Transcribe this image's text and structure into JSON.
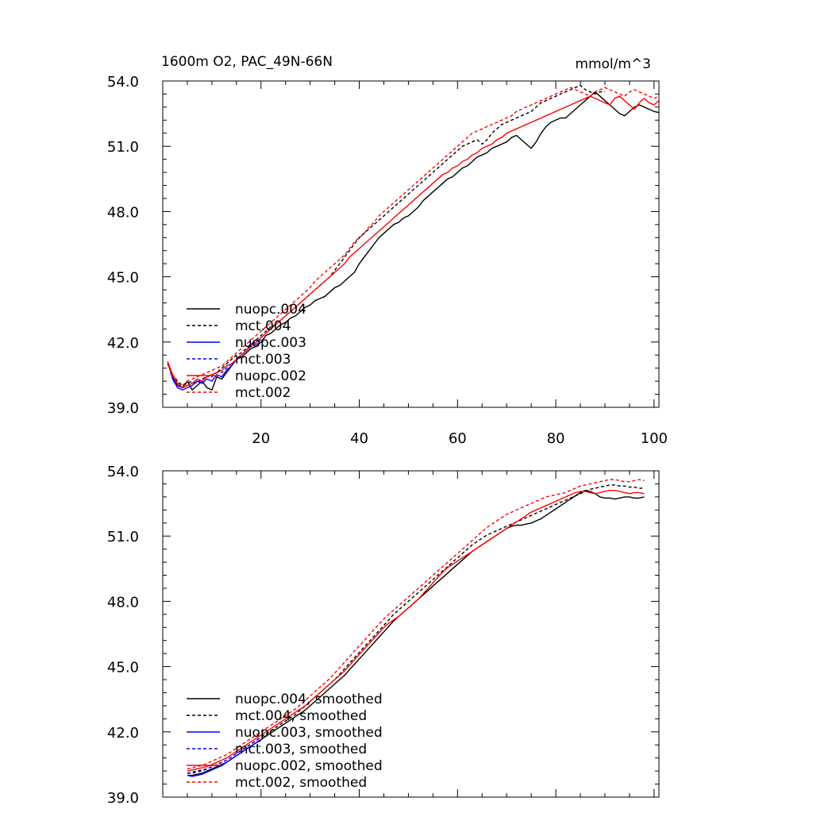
{
  "title": "1600m O2, PAC_49N-66N",
  "units": "mmol/m^3",
  "colors": {
    "nuopc_004": "#000000",
    "mct_004": "#000000",
    "nuopc_003": "#0000ff",
    "mct_003": "#0000ff",
    "nuopc_002": "#ff0000",
    "mct_002": "#ff0000"
  },
  "chart_data": [
    {
      "type": "line",
      "panel": "top",
      "xlim": [
        0,
        101
      ],
      "ylim": [
        39.0,
        54.0
      ],
      "x_ticks": [
        20,
        40,
        60,
        80,
        100
      ],
      "x_tick_labels": [
        "20",
        "40",
        "60",
        "80",
        "100"
      ],
      "y_ticks": [
        39.0,
        42.0,
        45.0,
        48.0,
        51.0,
        54.0
      ],
      "y_tick_labels": [
        "39.0",
        "42.0",
        "45.0",
        "48.0",
        "51.0",
        "54.0"
      ],
      "legend_placement": "lower-left",
      "series": [
        {
          "name": "nuopc.004",
          "style": "solid",
          "color": "#000000",
          "x_start": 1,
          "values": [
            41.1,
            40.4,
            40.0,
            39.9,
            40.2,
            39.8,
            40.0,
            40.2,
            39.9,
            39.8,
            40.4,
            40.3,
            40.6,
            40.9,
            41.2,
            41.3,
            41.5,
            41.7,
            41.8,
            42.0,
            42.3,
            42.4,
            42.6,
            42.8,
            42.9,
            43.1,
            43.2,
            43.4,
            43.6,
            43.7,
            43.9,
            44.0,
            44.1,
            44.3,
            44.5,
            44.6,
            44.8,
            45.0,
            45.2,
            45.6,
            45.9,
            46.2,
            46.5,
            46.8,
            47.0,
            47.2,
            47.4,
            47.5,
            47.7,
            47.8,
            48.0,
            48.2,
            48.5,
            48.7,
            48.9,
            49.1,
            49.3,
            49.5,
            49.6,
            49.8,
            50.0,
            50.1,
            50.3,
            50.5,
            50.6,
            50.7,
            50.9,
            51.0,
            51.1,
            51.2,
            51.4,
            51.5,
            51.3,
            51.1,
            50.9,
            51.2,
            51.6,
            51.9,
            52.1,
            52.2,
            52.3,
            52.3,
            52.5,
            52.7,
            52.9,
            53.1,
            53.3,
            53.5,
            53.3,
            53.1,
            52.9,
            52.7,
            52.5,
            52.4,
            52.6,
            52.8,
            52.9,
            52.8,
            52.7,
            52.6,
            52.55
          ]
        },
        {
          "name": "mct.004",
          "style": "dashed",
          "color": "#000000",
          "x_start": 1,
          "values": [
            41.0,
            40.5,
            40.2,
            40.0,
            40.1,
            40.2,
            40.1,
            40.3,
            40.4,
            40.5,
            40.6,
            40.8,
            41.0,
            41.2,
            41.4,
            41.5,
            41.7,
            41.9,
            42.1,
            42.3,
            42.5,
            42.7,
            42.8,
            43.0,
            43.2,
            43.4,
            43.6,
            43.8,
            44.0,
            44.2,
            44.4,
            44.6,
            44.8,
            45.0,
            45.3,
            45.6,
            45.9,
            46.2,
            46.5,
            46.8,
            47.0,
            47.2,
            47.4,
            47.6,
            47.8,
            48.0,
            48.2,
            48.4,
            48.6,
            48.8,
            49.0,
            49.2,
            49.4,
            49.6,
            49.8,
            50.0,
            50.2,
            50.4,
            50.6,
            50.8,
            51.0,
            51.1,
            51.2,
            51.3,
            51.1,
            51.3,
            51.6,
            51.8,
            52.0,
            52.1,
            52.2,
            52.3,
            52.4,
            52.5,
            52.6,
            52.8,
            53.0,
            53.1,
            53.2,
            53.3,
            53.4,
            53.5,
            53.6,
            53.7,
            53.8,
            53.6,
            53.5,
            53.4,
            53.5,
            53.5
          ]
        },
        {
          "name": "nuopc.003",
          "style": "solid",
          "color": "#0000ff",
          "x_start": 1,
          "values": [
            41.1,
            40.3,
            39.9,
            39.8,
            39.9,
            40.0,
            40.2,
            40.1,
            40.3,
            40.2,
            40.5,
            40.4,
            40.7,
            40.9,
            41.2,
            41.4,
            41.6,
            41.9,
            42.0,
            42.1
          ]
        },
        {
          "name": "mct.003",
          "style": "dashed",
          "color": "#0000ff",
          "x_start": 1,
          "values": [
            41.0,
            40.4,
            40.0,
            39.9,
            40.0,
            40.1,
            40.2,
            40.2,
            40.4,
            40.4,
            40.6,
            40.6,
            40.8,
            41.0,
            41.2,
            41.4,
            41.6,
            41.8,
            41.9,
            42.0
          ]
        },
        {
          "name": "nuopc.002",
          "style": "solid",
          "color": "#ff0000",
          "x_start": 1,
          "values": [
            41.1,
            40.5,
            40.1,
            39.9,
            40.0,
            40.1,
            40.3,
            40.2,
            40.4,
            40.5,
            40.6,
            40.7,
            40.9,
            41.0,
            41.2,
            41.4,
            41.6,
            41.8,
            42.0,
            42.2,
            42.4,
            42.6,
            42.8,
            43.0,
            43.2,
            43.4,
            43.6,
            43.8,
            44.0,
            44.2,
            44.4,
            44.6,
            44.8,
            45.0,
            45.2,
            45.4,
            45.6,
            45.9,
            46.1,
            46.3,
            46.5,
            46.7,
            46.9,
            47.1,
            47.3,
            47.5,
            47.7,
            47.9,
            48.1,
            48.3,
            48.5,
            48.7,
            48.9,
            49.1,
            49.3,
            49.5,
            49.7,
            49.8,
            50.0,
            50.1,
            50.3,
            50.4,
            50.6,
            50.7,
            50.9,
            51.0,
            51.1,
            51.3,
            51.4,
            51.6,
            51.7,
            51.8,
            51.9,
            52.0,
            52.1,
            52.2,
            52.3,
            52.4,
            52.5,
            52.6,
            52.7,
            52.8,
            52.9,
            53.0,
            53.1,
            53.2,
            53.3,
            53.2,
            53.1,
            53.0,
            52.9,
            53.2,
            53.3,
            53.1,
            52.9,
            52.7,
            53.0,
            53.2,
            53.0,
            52.9,
            53.1
          ]
        },
        {
          "name": "mct.002",
          "style": "dashed",
          "color": "#ff0000",
          "x_start": 1,
          "values": [
            41.0,
            40.4,
            40.1,
            40.0,
            40.2,
            40.3,
            40.4,
            40.5,
            40.6,
            40.7,
            40.8,
            40.9,
            41.1,
            41.3,
            41.5,
            41.7,
            41.9,
            42.1,
            42.3,
            42.5,
            42.7,
            42.9,
            43.1,
            43.3,
            43.5,
            43.7,
            43.9,
            44.1,
            44.3,
            44.5,
            44.8,
            45.0,
            45.2,
            45.4,
            45.6,
            45.8,
            46.0,
            46.3,
            46.6,
            46.8,
            47.0,
            47.3,
            47.5,
            47.8,
            48.0,
            48.2,
            48.4,
            48.6,
            48.8,
            49.0,
            49.2,
            49.4,
            49.6,
            49.8,
            50.0,
            50.2,
            50.4,
            50.6,
            50.8,
            51.0,
            51.2,
            51.4,
            51.6,
            51.7,
            51.8,
            51.9,
            52.0,
            52.1,
            52.2,
            52.3,
            52.4,
            52.6,
            52.7,
            52.8,
            52.9,
            53.0,
            53.1,
            53.2,
            53.3,
            53.4,
            53.5,
            53.6,
            53.7,
            53.6,
            53.5,
            53.4,
            53.3,
            53.5,
            53.6,
            53.7,
            53.6,
            53.5,
            53.4,
            53.3,
            53.5,
            53.6,
            53.5,
            53.4,
            53.3,
            53.2,
            53.3
          ]
        }
      ]
    },
    {
      "type": "line",
      "panel": "bottom",
      "xlim": [
        0,
        101
      ],
      "ylim": [
        39.0,
        54.0
      ],
      "x_ticks": [
        20,
        40,
        60,
        80,
        100
      ],
      "y_ticks": [
        39.0,
        42.0,
        45.0,
        48.0,
        51.0,
        54.0
      ],
      "y_tick_labels": [
        "39.0",
        "42.0",
        "45.0",
        "48.0",
        "51.0",
        "54.0"
      ],
      "legend_placement": "lower-left",
      "series": [
        {
          "name": "nuopc.004, smoothed",
          "style": "solid",
          "color": "#000000",
          "x_start": 5,
          "values": [
            40.0,
            40.0,
            40.05,
            40.1,
            40.2,
            40.3,
            40.4,
            40.5,
            40.6,
            40.75,
            40.9,
            41.05,
            41.2,
            41.35,
            41.5,
            41.65,
            41.8,
            41.95,
            42.1,
            42.25,
            42.4,
            42.55,
            42.7,
            42.85,
            43.0,
            43.2,
            43.4,
            43.6,
            43.8,
            44.0,
            44.2,
            44.4,
            44.6,
            44.85,
            45.1,
            45.35,
            45.6,
            45.85,
            46.1,
            46.35,
            46.6,
            46.85,
            47.1,
            47.3,
            47.5,
            47.7,
            47.9,
            48.1,
            48.3,
            48.5,
            48.7,
            48.9,
            49.1,
            49.3,
            49.5,
            49.7,
            49.9,
            50.1,
            50.3,
            50.45,
            50.6,
            50.75,
            50.9,
            51.05,
            51.2,
            51.35,
            51.45,
            51.5,
            51.5,
            51.55,
            51.6,
            51.7,
            51.8,
            51.95,
            52.1,
            52.25,
            52.4,
            52.55,
            52.7,
            52.85,
            53.0,
            53.1,
            53.05,
            52.95,
            52.8,
            52.75,
            52.75,
            52.7,
            52.75,
            52.8,
            52.8,
            52.75,
            52.75,
            52.8
          ]
        },
        {
          "name": "mct.004, smoothed",
          "style": "dashed",
          "color": "#000000",
          "x_start": 5,
          "values": [
            40.1,
            40.15,
            40.2,
            40.25,
            40.3,
            40.4,
            40.5,
            40.6,
            40.7,
            40.85,
            41.0,
            41.15,
            41.3,
            41.45,
            41.6,
            41.75,
            41.9,
            42.05,
            42.2,
            42.35,
            42.5,
            42.65,
            42.8,
            43.0,
            43.2,
            43.4,
            43.6,
            43.8,
            44.0,
            44.2,
            44.4,
            44.65,
            44.9,
            45.15,
            45.4,
            45.65,
            45.9,
            46.15,
            46.4,
            46.65,
            46.9,
            47.15,
            47.4,
            47.6,
            47.8,
            48.0,
            48.2,
            48.4,
            48.6,
            48.8,
            49.0,
            49.2,
            49.4,
            49.6,
            49.8,
            50.0,
            50.2,
            50.4,
            50.6,
            50.75,
            50.9,
            51.05,
            51.15,
            51.25,
            51.35,
            51.45,
            51.55,
            51.65,
            51.75,
            51.85,
            51.95,
            52.05,
            52.15,
            52.25,
            52.35,
            52.45,
            52.55,
            52.65,
            52.75,
            52.85,
            52.95,
            53.05,
            53.15,
            53.2,
            53.25,
            53.3,
            53.35,
            53.35,
            53.3,
            53.3,
            53.25,
            53.25,
            53.2,
            53.2
          ]
        },
        {
          "name": "nuopc.003, smoothed",
          "style": "solid",
          "color": "#0000ff",
          "x_start": 5,
          "values": [
            40.0,
            39.95,
            40.0,
            40.05,
            40.15,
            40.25,
            40.35,
            40.45,
            40.6,
            40.75,
            40.9,
            41.05,
            41.2,
            41.35,
            41.5,
            41.6
          ]
        },
        {
          "name": "mct.003, smoothed",
          "style": "dashed",
          "color": "#0000ff",
          "x_start": 5,
          "values": [
            40.1,
            40.1,
            40.15,
            40.2,
            40.3,
            40.4,
            40.5,
            40.6,
            40.7,
            40.85,
            41.0,
            41.15,
            41.3,
            41.45,
            41.6,
            41.75
          ]
        },
        {
          "name": "nuopc.002, smoothed",
          "style": "solid",
          "color": "#ff0000",
          "x_start": 5,
          "values": [
            40.2,
            40.25,
            40.3,
            40.35,
            40.4,
            40.5,
            40.6,
            40.7,
            40.8,
            40.95,
            41.1,
            41.25,
            41.4,
            41.55,
            41.7,
            41.85,
            42.0,
            42.15,
            42.3,
            42.45,
            42.6,
            42.75,
            42.9,
            43.05,
            43.2,
            43.4,
            43.6,
            43.8,
            44.0,
            44.2,
            44.4,
            44.6,
            44.8,
            45.05,
            45.3,
            45.55,
            45.8,
            46.05,
            46.3,
            46.55,
            46.8,
            47.0,
            47.15,
            47.3,
            47.5,
            47.7,
            47.9,
            48.1,
            48.35,
            48.6,
            48.85,
            49.1,
            49.35,
            49.55,
            49.7,
            49.85,
            50.0,
            50.15,
            50.3,
            50.45,
            50.6,
            50.75,
            50.9,
            51.05,
            51.2,
            51.35,
            51.5,
            51.65,
            51.8,
            51.95,
            52.1,
            52.2,
            52.3,
            52.4,
            52.5,
            52.6,
            52.7,
            52.8,
            52.9,
            53.0,
            53.05,
            53.05,
            53.0,
            52.95,
            53.0,
            53.05,
            53.1,
            53.1,
            53.05,
            53.0,
            52.95,
            53.0,
            53.0,
            52.95
          ]
        },
        {
          "name": "mct.002, smoothed",
          "style": "dashed",
          "color": "#ff0000",
          "x_start": 5,
          "values": [
            40.3,
            40.35,
            40.4,
            40.45,
            40.55,
            40.65,
            40.75,
            40.85,
            40.95,
            41.1,
            41.25,
            41.4,
            41.55,
            41.7,
            41.85,
            42.0,
            42.15,
            42.3,
            42.45,
            42.6,
            42.75,
            42.9,
            43.05,
            43.25,
            43.45,
            43.65,
            43.85,
            44.05,
            44.25,
            44.45,
            44.7,
            44.95,
            45.2,
            45.45,
            45.7,
            45.95,
            46.2,
            46.45,
            46.7,
            46.95,
            47.2,
            47.4,
            47.6,
            47.8,
            48.0,
            48.2,
            48.4,
            48.6,
            48.8,
            49.0,
            49.2,
            49.4,
            49.6,
            49.8,
            50.0,
            50.2,
            50.4,
            50.6,
            50.8,
            51.0,
            51.2,
            51.4,
            51.55,
            51.7,
            51.85,
            52.0,
            52.1,
            52.2,
            52.3,
            52.4,
            52.5,
            52.6,
            52.7,
            52.8,
            52.85,
            52.9,
            52.95,
            53.0,
            53.1,
            53.2,
            53.3,
            53.35,
            53.4,
            53.45,
            53.5,
            53.55,
            53.6,
            53.6,
            53.55,
            53.5,
            53.5,
            53.55,
            53.6,
            53.55
          ]
        }
      ]
    }
  ]
}
